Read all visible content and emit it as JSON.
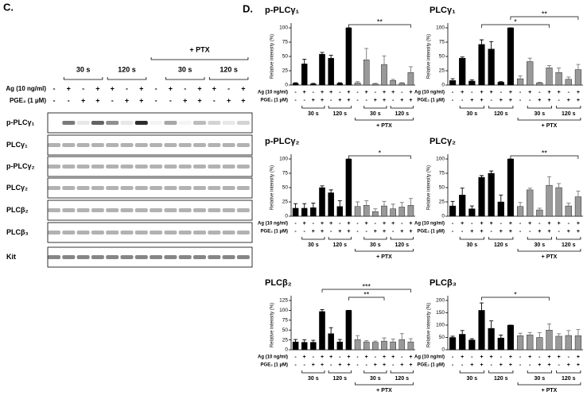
{
  "blot": {
    "label": "C.",
    "ptx_label": "+ PTX",
    "time_labels": [
      "30 s",
      "120 s",
      "30 s",
      "120 s"
    ],
    "condition_rows": [
      {
        "name": "Ag (10 ng/ml)",
        "labels": [
          "-",
          "+",
          "-",
          "+",
          "+",
          "-",
          "+",
          "-",
          "+",
          "-",
          "+",
          "+",
          "-",
          "+"
        ]
      },
      {
        "name": "PGE₂ (1 µM)",
        "labels": [
          "-",
          "-",
          "+",
          "+",
          "-",
          "+",
          "+",
          "-",
          "-",
          "+",
          "+",
          "-",
          "+",
          "+"
        ]
      }
    ],
    "rows": [
      "p-PLCγ₁",
      "PLCγ₁",
      "p-PLCγ₂",
      "PLCγ₂",
      "PLCβ₂",
      "PLCβ₃",
      "Kit"
    ]
  },
  "panel_label": "D.",
  "chart_data": [
    {
      "type": "bar",
      "title": "p-PLCγ₁",
      "ylabel": "Relative intensity (%)",
      "ylim": [
        0,
        100
      ],
      "yticks": [
        0,
        25,
        50,
        75,
        100
      ],
      "values": [
        3,
        37,
        2,
        54,
        47,
        3,
        100,
        4,
        44,
        2,
        36,
        8,
        3,
        22
      ],
      "errors": [
        1,
        8,
        1,
        3,
        5,
        1,
        0,
        2,
        20,
        1,
        15,
        2,
        1,
        10
      ],
      "color": "#000000",
      "ptx_color": "#999999",
      "condition_rows": [
        {
          "name": "Ag (10 ng/ml)",
          "labels": [
            "-",
            "+",
            "-",
            "+",
            "+",
            "-",
            "+",
            "-",
            "+",
            "-",
            "+",
            "+",
            "-",
            "+"
          ]
        },
        {
          "name": "PGE₂ (1 µM)",
          "labels": [
            "-",
            "-",
            "+",
            "+",
            "-",
            "+",
            "+",
            "-",
            "-",
            "+",
            "+",
            "-",
            "+",
            "+"
          ]
        }
      ],
      "time_labels": [
        "30 s",
        "120 s",
        "30 s",
        "120 s"
      ],
      "ptx_label": "+ PTX",
      "significance": [
        {
          "label": "**",
          "from": 6,
          "to": 13
        }
      ]
    },
    {
      "type": "bar",
      "title": "PLCγ₁",
      "ylabel": "Relative intensity (%)",
      "ylim": [
        0,
        100
      ],
      "yticks": [
        0,
        25,
        50,
        75,
        100
      ],
      "values": [
        8,
        47,
        7,
        71,
        63,
        5,
        100,
        11,
        41,
        4,
        30,
        22,
        10,
        27
      ],
      "errors": [
        3,
        2,
        2,
        8,
        13,
        1,
        0,
        5,
        6,
        1,
        4,
        8,
        4,
        9
      ],
      "color": "#000000",
      "ptx_color": "#999999",
      "condition_rows": [
        {
          "name": "Ag (10 ng/ml)",
          "labels": [
            "-",
            "+",
            "-",
            "+",
            "+",
            "-",
            "+",
            "-",
            "+",
            "-",
            "+",
            "+",
            "-",
            "+"
          ]
        },
        {
          "name": "PGE₂ (1 µM)",
          "labels": [
            "-",
            "-",
            "+",
            "+",
            "-",
            "+",
            "+",
            "-",
            "-",
            "+",
            "+",
            "-",
            "+",
            "+"
          ]
        }
      ],
      "time_labels": [
        "30 s",
        "120 s",
        "30 s",
        "120 s"
      ],
      "ptx_label": "+ PTX",
      "significance": [
        {
          "label": "**",
          "from": 6,
          "to": 13
        },
        {
          "label": "*",
          "from": 3,
          "to": 10
        }
      ]
    },
    {
      "type": "bar",
      "title": "p-PLCγ₂",
      "ylabel": "Relative intensity (%)",
      "ylim": [
        0,
        100
      ],
      "yticks": [
        0,
        25,
        50,
        75,
        100
      ],
      "values": [
        14,
        14,
        15,
        50,
        41,
        17,
        100,
        17,
        19,
        8,
        18,
        13,
        16,
        19
      ],
      "errors": [
        8,
        8,
        8,
        3,
        5,
        10,
        0,
        8,
        8,
        5,
        8,
        8,
        8,
        12
      ],
      "color": "#000000",
      "ptx_color": "#999999",
      "condition_rows": [
        {
          "name": "Ag (10 ng/ml)",
          "labels": [
            "-",
            "+",
            "-",
            "+",
            "+",
            "-",
            "+",
            "-",
            "+",
            "-",
            "+",
            "+",
            "-",
            "+"
          ]
        },
        {
          "name": "PGE₂ (1 µM)",
          "labels": [
            "-",
            "-",
            "+",
            "+",
            "-",
            "+",
            "+",
            "-",
            "-",
            "+",
            "+",
            "-",
            "+",
            "+"
          ]
        }
      ],
      "time_labels": [
        "30 s",
        "120 s",
        "30 s",
        "120 s"
      ],
      "ptx_label": "+ PTX",
      "significance": [
        {
          "label": "*",
          "from": 6,
          "to": 13
        }
      ]
    },
    {
      "type": "bar",
      "title": "PLCγ₂",
      "ylabel": "Relative intensity (%)",
      "ylim": [
        0,
        100
      ],
      "yticks": [
        0,
        25,
        50,
        75,
        100
      ],
      "values": [
        18,
        37,
        13,
        68,
        75,
        25,
        100,
        17,
        46,
        11,
        54,
        50,
        18,
        34
      ],
      "errors": [
        8,
        12,
        5,
        3,
        4,
        12,
        0,
        7,
        3,
        3,
        15,
        7,
        5,
        10
      ],
      "color": "#000000",
      "ptx_color": "#999999",
      "condition_rows": [
        {
          "name": "Ag (10 ng/ml)",
          "labels": [
            "-",
            "+",
            "-",
            "+",
            "+",
            "-",
            "+",
            "-",
            "+",
            "-",
            "+",
            "+",
            "-",
            "+"
          ]
        },
        {
          "name": "PGE₂ (1 µM)",
          "labels": [
            "-",
            "-",
            "+",
            "+",
            "-",
            "+",
            "+",
            "-",
            "-",
            "+",
            "+",
            "-",
            "+",
            "+"
          ]
        }
      ],
      "time_labels": [
        "30 s",
        "120 s",
        "30 s",
        "120 s"
      ],
      "ptx_label": "+ PTX",
      "significance": [
        {
          "label": "**",
          "from": 6,
          "to": 13
        }
      ]
    },
    {
      "type": "bar",
      "title": "PLCβ₂",
      "ylabel": "Relative intensity (%)",
      "ylim": [
        0,
        125
      ],
      "yticks": [
        0,
        25,
        50,
        75,
        100,
        125
      ],
      "values": [
        20,
        19,
        19,
        97,
        41,
        20,
        100,
        26,
        20,
        19,
        22,
        20,
        26,
        20
      ],
      "errors": [
        6,
        6,
        5,
        5,
        15,
        6,
        0,
        10,
        3,
        3,
        8,
        7,
        15,
        8
      ],
      "color": "#000000",
      "ptx_color": "#999999",
      "condition_rows": [
        {
          "name": "Ag (10 ng/ml)",
          "labels": [
            "-",
            "+",
            "-",
            "+",
            "+",
            "-",
            "+",
            "-",
            "+",
            "-",
            "+",
            "+",
            "-",
            "+"
          ]
        },
        {
          "name": "PGE₂ (1 µM)",
          "labels": [
            "-",
            "-",
            "+",
            "+",
            "-",
            "+",
            "+",
            "-",
            "-",
            "+",
            "+",
            "-",
            "+",
            "+"
          ]
        }
      ],
      "time_labels": [
        "30 s",
        "120 s",
        "30 s",
        "120 s"
      ],
      "ptx_label": "+ PTX",
      "significance": [
        {
          "label": "***",
          "from": 3,
          "to": 13
        },
        {
          "label": "**",
          "from": 6,
          "to": 10
        }
      ]
    },
    {
      "type": "bar",
      "title": "PLCβ₃",
      "ylabel": "Relative intensity (%)",
      "ylim": [
        0,
        200
      ],
      "yticks": [
        0,
        50,
        100,
        150,
        200
      ],
      "values": [
        50,
        63,
        40,
        160,
        87,
        48,
        100,
        57,
        60,
        50,
        80,
        55,
        58,
        57
      ],
      "errors": [
        5,
        15,
        5,
        30,
        30,
        12,
        0,
        10,
        10,
        20,
        25,
        10,
        20,
        25
      ],
      "color": "#000000",
      "ptx_color": "#999999",
      "condition_rows": [
        {
          "name": "Ag (10 ng/ml)",
          "labels": [
            "-",
            "+",
            "-",
            "+",
            "+",
            "-",
            "+",
            "-",
            "+",
            "-",
            "+",
            "+",
            "-",
            "+"
          ]
        },
        {
          "name": "PGE₂ (1 µM)",
          "labels": [
            "-",
            "-",
            "+",
            "+",
            "-",
            "+",
            "+",
            "-",
            "-",
            "+",
            "+",
            "-",
            "+",
            "+"
          ]
        }
      ],
      "time_labels": [
        "30 s",
        "120 s",
        "30 s",
        "120 s"
      ],
      "ptx_label": "+ PTX",
      "significance": [
        {
          "label": "*",
          "from": 3,
          "to": 10
        }
      ]
    }
  ]
}
